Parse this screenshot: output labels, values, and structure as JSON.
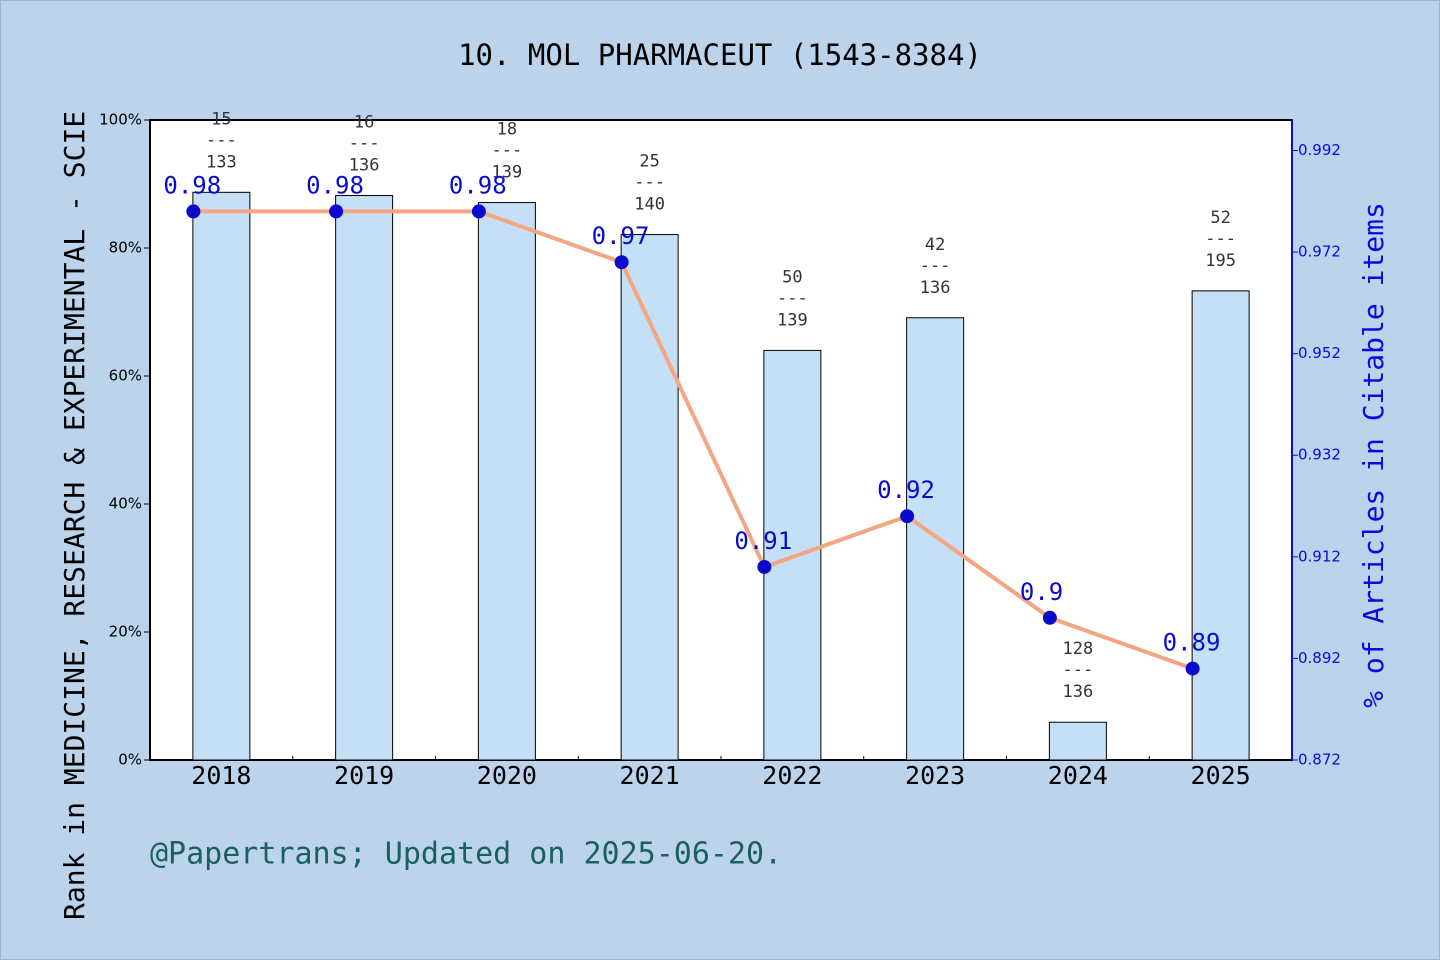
{
  "chart_data": {
    "type": "bar-line",
    "title": "10. MOL PHARMACEUT (1543-8384)",
    "y_label": "Rank in MEDICINE, RESEARCH & EXPERIMENTAL - SCIE",
    "y2_label": "% of Articles in Citable items",
    "footer": "@Papertrans; Updated on 2025-06-20.",
    "categories": [
      "2018",
      "2019",
      "2020",
      "2021",
      "2022",
      "2023",
      "2024",
      "2025"
    ],
    "series": [
      {
        "type": "bar",
        "color": "#c5dff7",
        "values": [
          88.7,
          88.2,
          87.1,
          82.1,
          64.0,
          69.1,
          5.9,
          73.3
        ],
        "ranks": [
          15,
          16,
          18,
          25,
          50,
          42,
          128,
          52
        ],
        "totals": [
          133,
          136,
          139,
          140,
          139,
          136,
          136,
          195
        ],
        "label_separator": "---"
      },
      {
        "type": "line",
        "axis": "y2",
        "color": "#f4a582",
        "marker_color": "#0a0acd",
        "values": [
          0.98,
          0.98,
          0.98,
          0.97,
          0.91,
          0.92,
          0.9,
          0.89
        ]
      }
    ],
    "ylim": [
      0,
      100
    ],
    "yticks": [
      {
        "value": 0,
        "label": "0%"
      },
      {
        "value": 20,
        "label": "20%"
      },
      {
        "value": 40,
        "label": "40%"
      },
      {
        "value": 60,
        "label": "60%"
      },
      {
        "value": 80,
        "label": "80%"
      },
      {
        "value": 100,
        "label": "100%"
      }
    ],
    "y2lim": [
      0.872,
      0.998
    ],
    "y2ticks": [
      0.872,
      0.892,
      0.912,
      0.932,
      0.952,
      0.972,
      0.992
    ]
  }
}
